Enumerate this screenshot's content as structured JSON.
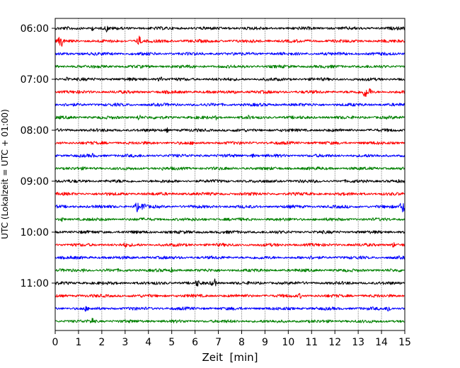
{
  "chart_data": {
    "type": "line",
    "title": "",
    "xlabel": "Zeit  [min]",
    "ylabel": "UTC (Lokalzeit = UTC + 01:00)",
    "xlim": [
      0,
      15
    ],
    "x_ticks": [
      "0",
      "1",
      "2",
      "3",
      "4",
      "5",
      "6",
      "7",
      "8",
      "9",
      "10",
      "11",
      "12",
      "13",
      "14",
      "15"
    ],
    "y_tick_labels": [
      "06:00",
      "07:00",
      "08:00",
      "09:00",
      "10:00",
      "11:00"
    ],
    "y_tick_rows": [
      0,
      4,
      8,
      12,
      16,
      20
    ],
    "grid": "vertical dotted",
    "trace_colors": [
      "#000000",
      "#ff0000",
      "#0000ff",
      "#008000"
    ],
    "series": [
      {
        "start": "06:00",
        "color": "#000000",
        "events": [
          {
            "t": 1.6,
            "amp": 4
          },
          {
            "t": 2.2,
            "amp": 6
          },
          {
            "t": 7.5,
            "amp": 3
          }
        ]
      },
      {
        "start": "06:15",
        "color": "#ff0000",
        "events": [
          {
            "t": 0.25,
            "amp": 13
          },
          {
            "t": 3.6,
            "amp": 9
          }
        ]
      },
      {
        "start": "06:30",
        "color": "#0000ff",
        "events": []
      },
      {
        "start": "06:45",
        "color": "#008000",
        "events": [
          {
            "t": 11.8,
            "amp": 3
          }
        ]
      },
      {
        "start": "07:00",
        "color": "#000000",
        "events": [
          {
            "t": 0.5,
            "amp": 5
          },
          {
            "t": 4.5,
            "amp": 6
          }
        ]
      },
      {
        "start": "07:15",
        "color": "#ff0000",
        "events": [
          {
            "t": 7.7,
            "amp": 4
          },
          {
            "t": 13.3,
            "amp": 11
          },
          {
            "t": 13.5,
            "amp": 7
          }
        ]
      },
      {
        "start": "07:30",
        "color": "#0000ff",
        "events": []
      },
      {
        "start": "07:45",
        "color": "#008000",
        "events": [
          {
            "t": 3.6,
            "amp": 6
          },
          {
            "t": 6.9,
            "amp": 4
          },
          {
            "t": 8.3,
            "amp": 4
          }
        ]
      },
      {
        "start": "08:00",
        "color": "#000000",
        "events": [
          {
            "t": 4.8,
            "amp": 4
          }
        ]
      },
      {
        "start": "08:15",
        "color": "#ff0000",
        "events": []
      },
      {
        "start": "08:30",
        "color": "#0000ff",
        "events": [
          {
            "t": 1.6,
            "amp": 4
          },
          {
            "t": 8.5,
            "amp": 4
          }
        ]
      },
      {
        "start": "08:45",
        "color": "#008000",
        "events": [
          {
            "t": 4.6,
            "amp": 3
          }
        ]
      },
      {
        "start": "09:00",
        "color": "#000000",
        "events": [
          {
            "t": 8.8,
            "amp": 3
          }
        ]
      },
      {
        "start": "09:15",
        "color": "#ff0000",
        "events": []
      },
      {
        "start": "09:30",
        "color": "#0000ff",
        "events": [
          {
            "t": 3.5,
            "amp": 9
          },
          {
            "t": 3.8,
            "amp": 9
          },
          {
            "t": 14.9,
            "amp": 12
          }
        ]
      },
      {
        "start": "09:45",
        "color": "#008000",
        "events": [
          {
            "t": 0.3,
            "amp": 4
          }
        ]
      },
      {
        "start": "10:00",
        "color": "#000000",
        "events": []
      },
      {
        "start": "10:15",
        "color": "#ff0000",
        "events": [
          {
            "t": 3.0,
            "amp": 5
          },
          {
            "t": 14.5,
            "amp": 5
          }
        ]
      },
      {
        "start": "10:30",
        "color": "#0000ff",
        "events": [
          {
            "t": 11.0,
            "amp": 4
          }
        ]
      },
      {
        "start": "10:45",
        "color": "#008000",
        "events": [
          {
            "t": 1.2,
            "amp": 4
          },
          {
            "t": 5.0,
            "amp": 4
          }
        ]
      },
      {
        "start": "11:00",
        "color": "#000000",
        "events": [
          {
            "t": 6.1,
            "amp": 7
          },
          {
            "t": 6.8,
            "amp": 10
          }
        ]
      },
      {
        "start": "11:15",
        "color": "#ff0000",
        "events": [
          {
            "t": 10.5,
            "amp": 5
          }
        ]
      },
      {
        "start": "11:30",
        "color": "#0000ff",
        "events": [
          {
            "t": 1.3,
            "amp": 5
          },
          {
            "t": 3.3,
            "amp": 5
          },
          {
            "t": 14.3,
            "amp": 7
          }
        ]
      },
      {
        "start": "11:45",
        "color": "#008000",
        "events": [
          {
            "t": 1.6,
            "amp": 7
          }
        ]
      }
    ]
  }
}
